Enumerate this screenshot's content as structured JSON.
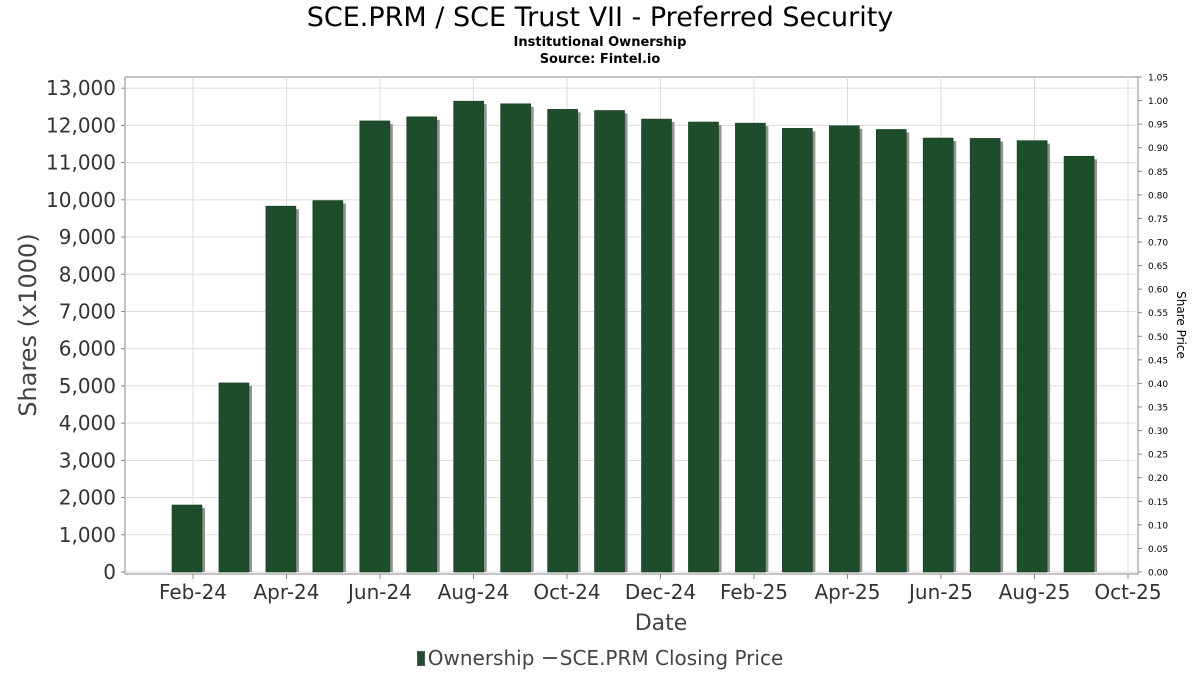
{
  "chart_data": {
    "type": "bar",
    "title": "SCE.PRM / SCE Trust VII - Preferred Security",
    "subtitle": "Institutional Ownership",
    "source": "Source: Fintel.io",
    "xlabel": "Date",
    "ylabel": "Shares (x1000)",
    "y2label": "Share Price",
    "ylim": [
      0,
      13300
    ],
    "y2lim": [
      0,
      1.05
    ],
    "yticks": [
      "0",
      "1,000",
      "2,000",
      "3,000",
      "4,000",
      "5,000",
      "6,000",
      "7,000",
      "8,000",
      "9,000",
      "10,000",
      "11,000",
      "12,000",
      "13,000"
    ],
    "y2ticks": [
      "0.00",
      "0.05",
      "0.10",
      "0.15",
      "0.20",
      "0.25",
      "0.30",
      "0.35",
      "0.40",
      "0.45",
      "0.50",
      "0.55",
      "0.60",
      "0.65",
      "0.70",
      "0.75",
      "0.80",
      "0.85",
      "0.90",
      "0.95",
      "1.00",
      "1.05"
    ],
    "xticks": [
      "Feb-24",
      "Apr-24",
      "Jun-24",
      "Aug-24",
      "Oct-24",
      "Dec-24",
      "Feb-25",
      "Apr-25",
      "Jun-25",
      "Aug-25",
      "Oct-25"
    ],
    "grid": true,
    "legend_position": "bottom",
    "series": [
      {
        "name": "Ownership",
        "color": "#1e4d2b",
        "values": [
          1800,
          5080,
          9830,
          9980,
          12120,
          12230,
          12650,
          12580,
          12430,
          12400,
          12170,
          12090,
          12060,
          11920,
          11990,
          11890,
          11660,
          11650,
          11590,
          11170
        ]
      },
      {
        "name": "SCE.PRM Closing Price",
        "color": "#555555",
        "values": []
      }
    ]
  }
}
